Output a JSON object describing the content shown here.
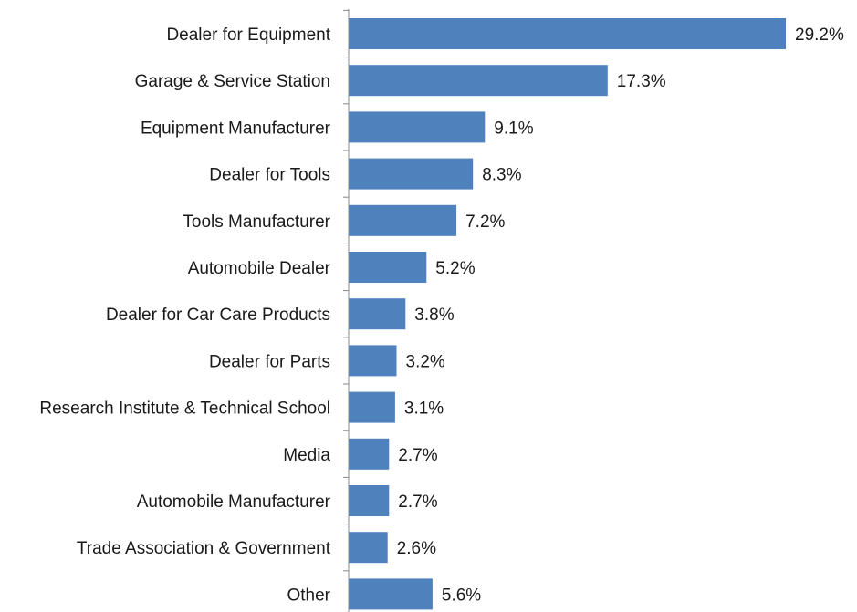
{
  "chart_data": {
    "type": "bar",
    "orientation": "horizontal",
    "categories": [
      "Dealer for Equipment",
      "Garage & Service Station",
      "Equipment Manufacturer",
      "Dealer for Tools",
      "Tools Manufacturer",
      "Automobile Dealer",
      "Dealer for Car Care Products",
      "Dealer for Parts",
      "Research Institute & Technical School",
      "Media",
      "Automobile Manufacturer",
      "Trade Association & Government",
      "Other"
    ],
    "values": [
      29.2,
      17.3,
      9.1,
      8.3,
      7.2,
      5.2,
      3.8,
      3.2,
      3.1,
      2.7,
      2.7,
      2.6,
      5.6
    ],
    "value_labels": [
      "29.2%",
      "17.3%",
      "9.1%",
      "8.3%",
      "7.2%",
      "5.2%",
      "3.8%",
      "3.2%",
      "3.1%",
      "2.7%",
      "2.7%",
      "2.6%",
      "5.6%"
    ],
    "title": "",
    "xlabel": "",
    "ylabel": "",
    "xlim": [
      0,
      30
    ],
    "grid": false,
    "legend": "none",
    "bar_color": "#4f81bd",
    "axis_color": "#888888"
  }
}
